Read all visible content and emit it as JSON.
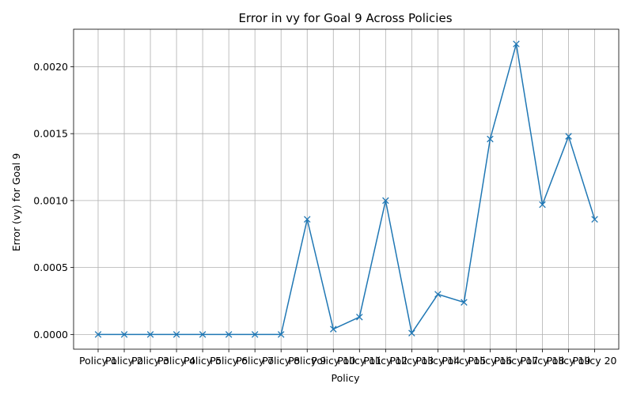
{
  "chart_data": {
    "type": "line",
    "title": "Error in vy for Goal 9 Across Policies",
    "xlabel": "Policy",
    "ylabel": "Error (vy) for Goal 9",
    "categories": [
      "Policy 1",
      "Policy 2",
      "Policy 3",
      "Policy 4",
      "Policy 5",
      "Policy 6",
      "Policy 7",
      "Policy 8",
      "Policy 9",
      "Policy 10",
      "Policy 11",
      "Policy 12",
      "Policy 13",
      "Policy 14",
      "Policy 15",
      "Policy 16",
      "Policy 17",
      "Policy 18",
      "Policy 19",
      "Policy 20"
    ],
    "values": [
      0.0,
      0.0,
      0.0,
      0.0,
      0.0,
      0.0,
      0.0,
      0.0,
      0.00086,
      4e-05,
      0.00013,
      0.001,
      1e-05,
      0.0003,
      0.00024,
      0.00146,
      0.00217,
      0.00097,
      0.00148,
      0.00086
    ],
    "ylim": [
      -0.00011,
      0.00228
    ],
    "yticks": [
      "0.0000",
      "0.0005",
      "0.0010",
      "0.0015",
      "0.0020"
    ],
    "ytick_values": [
      0,
      0.0005,
      0.001,
      0.0015,
      0.002
    ],
    "grid": true,
    "marker": "x",
    "color": "#1f77b4"
  }
}
